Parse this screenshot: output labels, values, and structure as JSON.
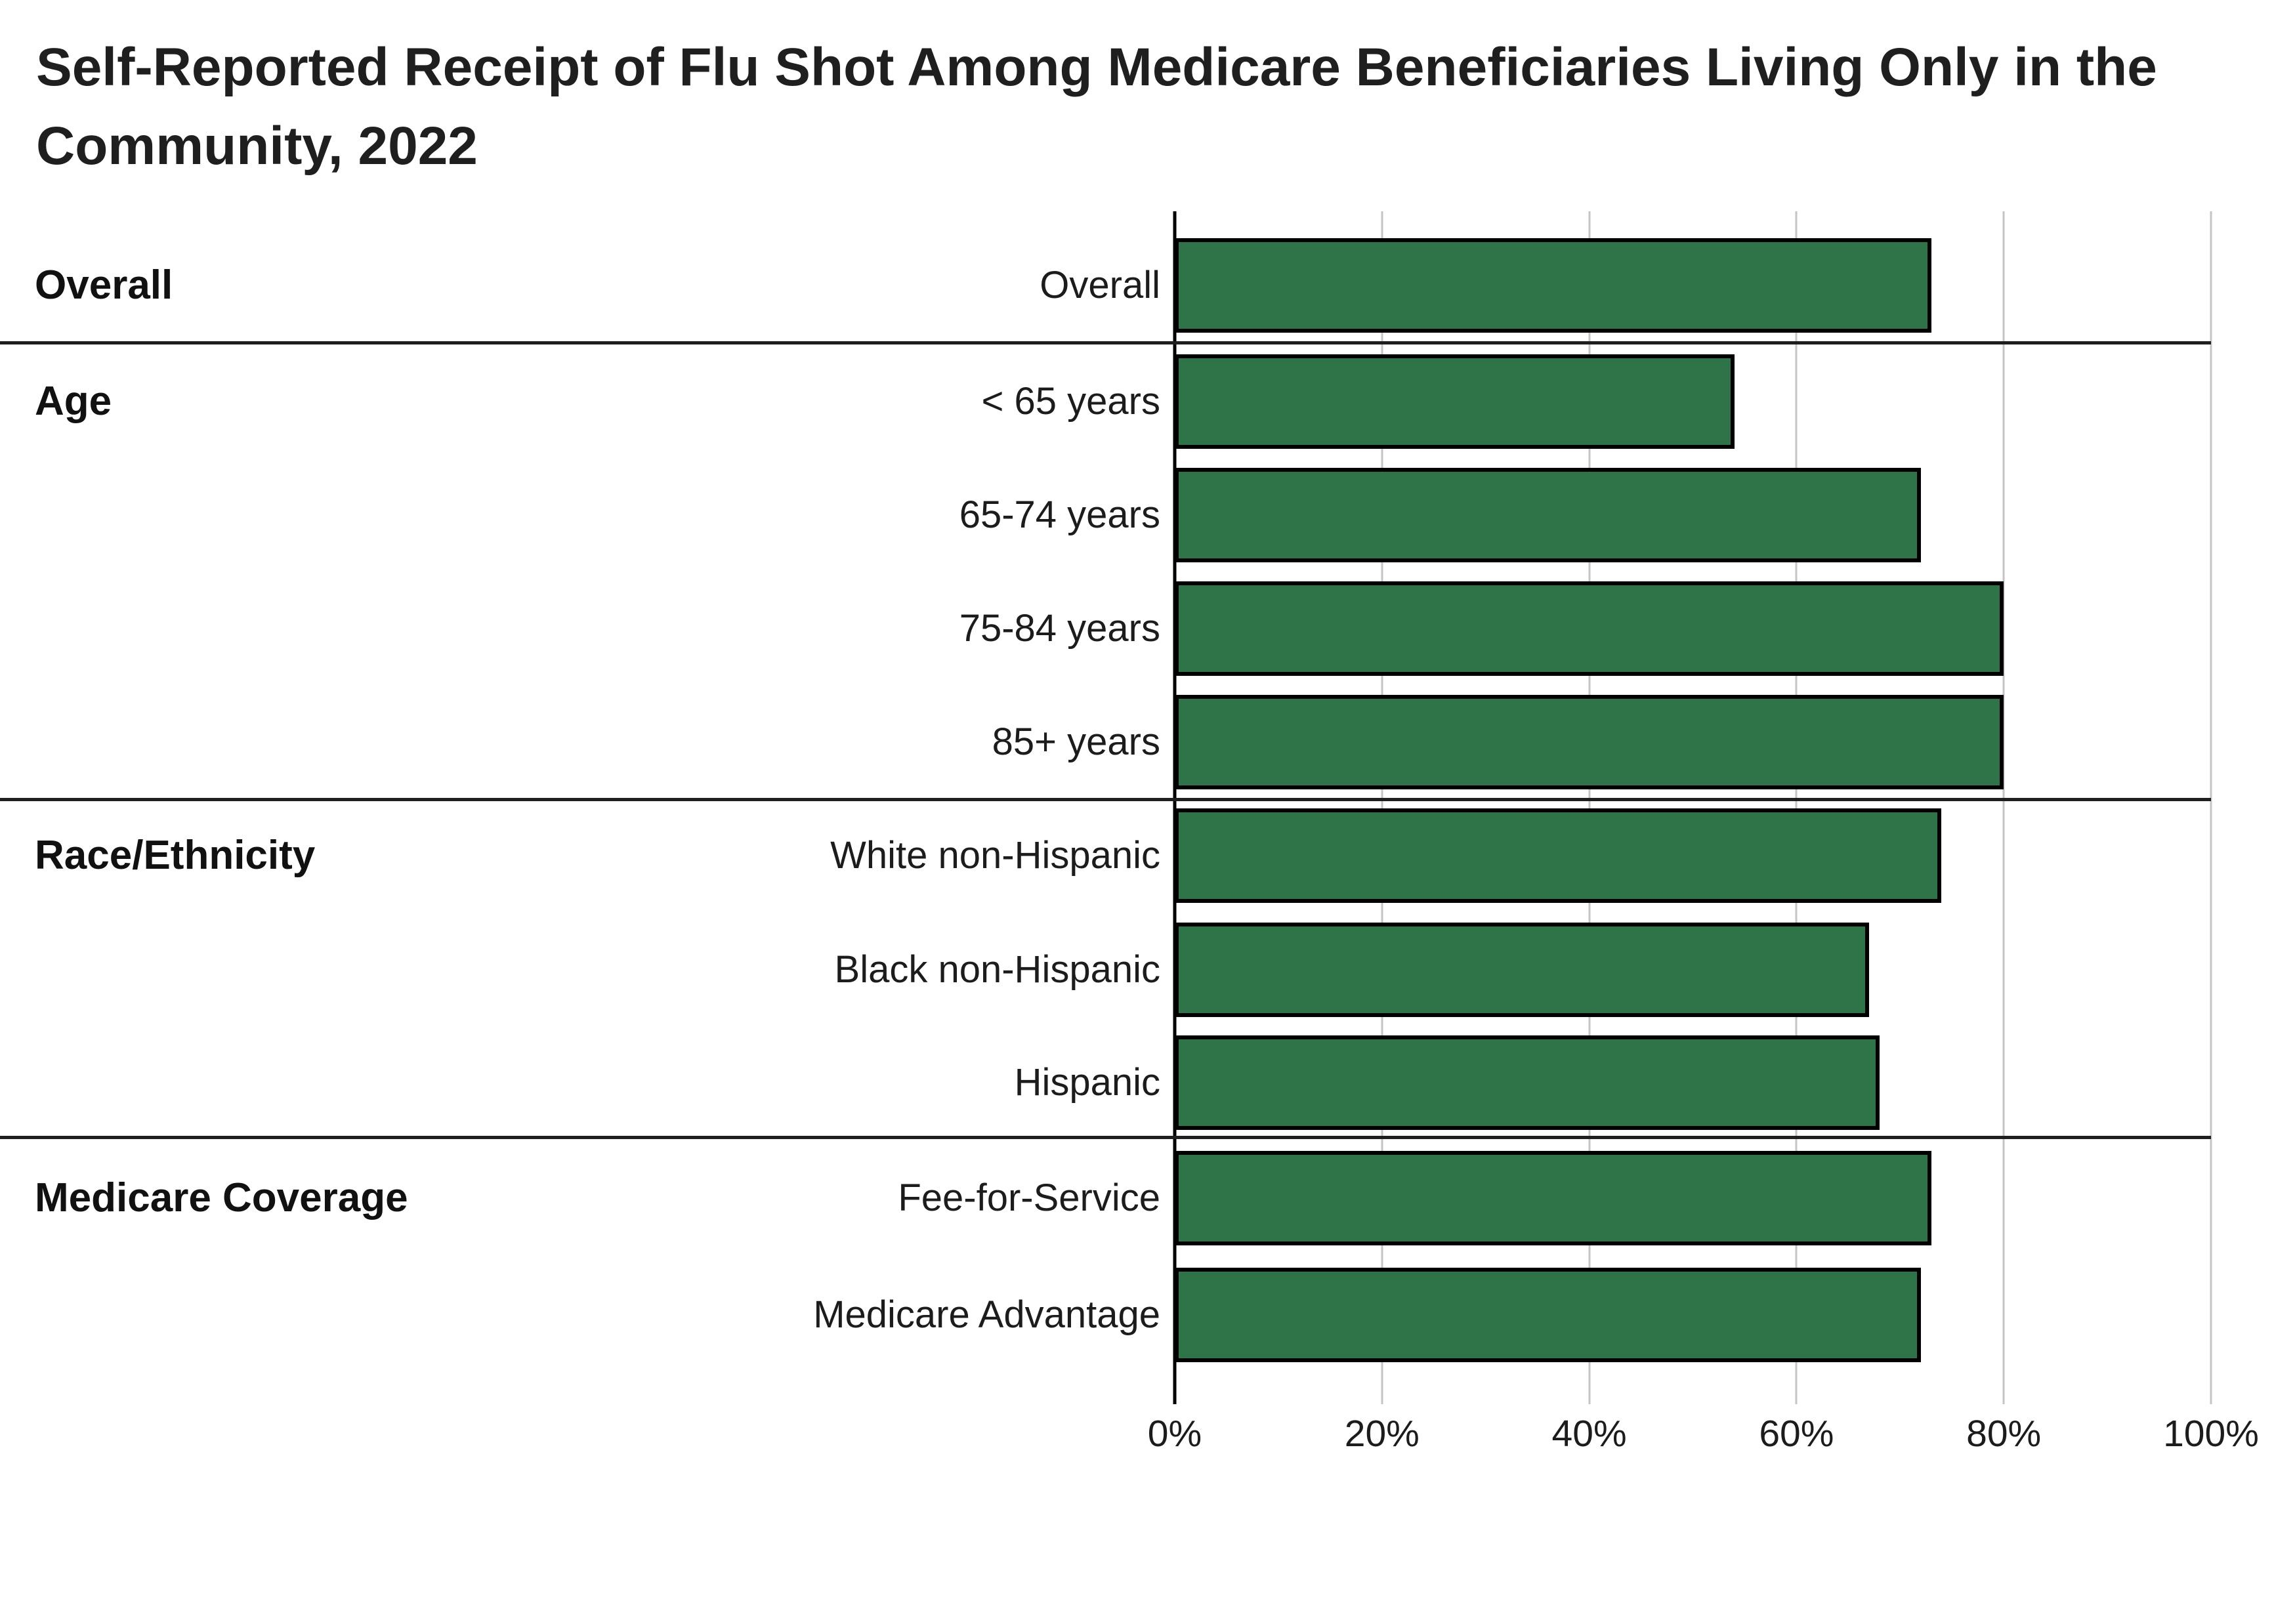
{
  "title": {
    "line1": "Self-Reported Receipt of Flu Shot Among Medicare Beneficiaries Living Only in the",
    "line2": "Community, 2022"
  },
  "chart_data": {
    "type": "bar",
    "orientation": "horizontal",
    "title": "Self-Reported Receipt of Flu Shot Among Medicare Beneficiaries Living Only in the Community, 2022",
    "xlabel": "",
    "ylabel": "",
    "x_axis": {
      "min": 0,
      "max": 100,
      "tick_step": 20,
      "tick_labels": [
        "0%",
        "20%",
        "40%",
        "60%",
        "80%",
        "100%"
      ],
      "gridlines": true
    },
    "groups": [
      {
        "label": "Overall",
        "rows": [
          {
            "label": "Overall",
            "value": 73
          }
        ]
      },
      {
        "label": "Age",
        "rows": [
          {
            "label": "< 65 years",
            "value": 54
          },
          {
            "label": "65-74 years",
            "value": 72
          },
          {
            "label": "75-84 years",
            "value": 80
          },
          {
            "label": "85+ years",
            "value": 80
          }
        ]
      },
      {
        "label": "Race/Ethnicity",
        "rows": [
          {
            "label": "White non-Hispanic",
            "value": 74
          },
          {
            "label": "Black non-Hispanic",
            "value": 67
          },
          {
            "label": "Hispanic",
            "value": 68
          }
        ]
      },
      {
        "label": "Medicare Coverage",
        "rows": [
          {
            "label": "Fee-for-Service",
            "value": 73
          },
          {
            "label": "Medicare Advantage",
            "value": 72
          }
        ]
      }
    ],
    "colors": {
      "bar_fill": "#2f7449",
      "bar_border": "#000000",
      "gridline": "#c4c4c4",
      "axis_line": "#000000",
      "separator": "#1f1f1f",
      "text": "#1c1c1c"
    },
    "legend": "none",
    "values_shown_as_labels": false
  }
}
